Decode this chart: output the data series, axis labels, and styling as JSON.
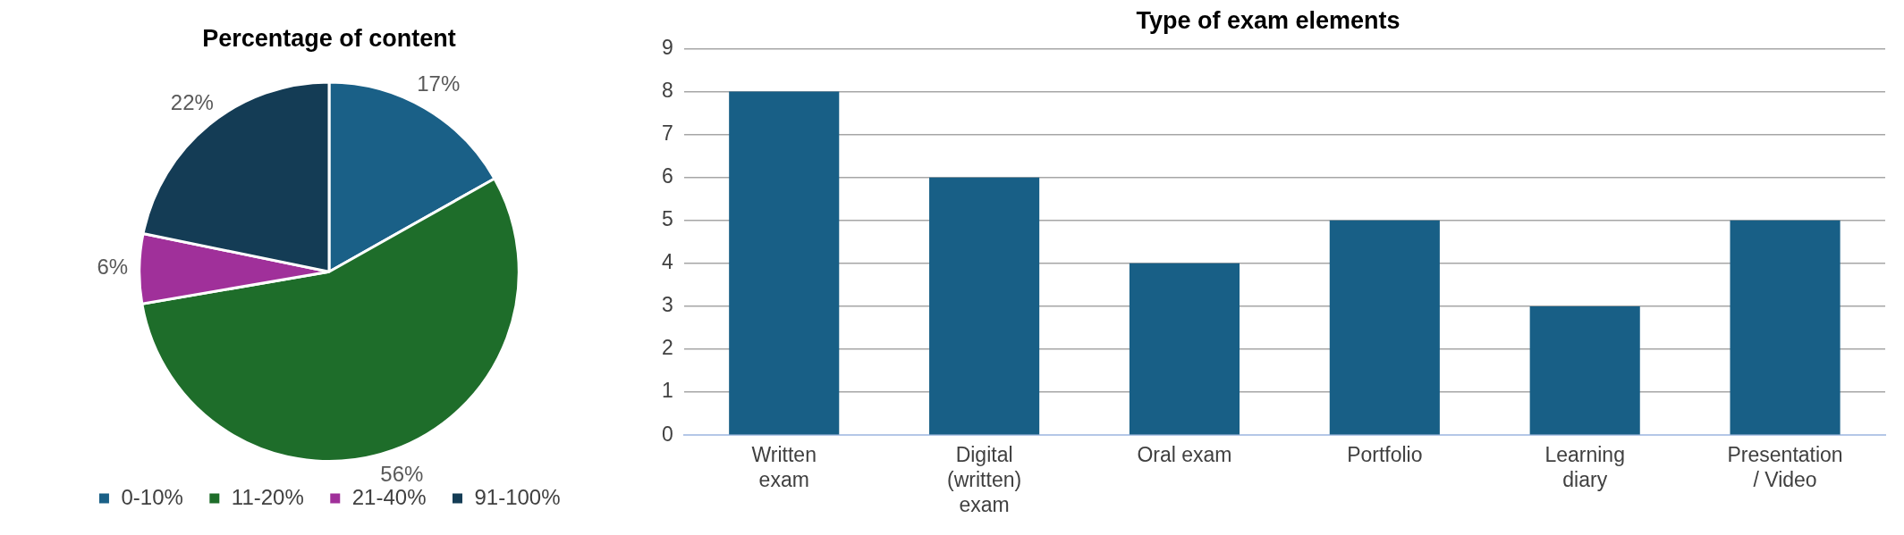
{
  "chart_data": [
    {
      "type": "pie",
      "title": "Percentage of content",
      "categories": [
        "0-10%",
        "11-20%",
        "21-40%",
        "91-100%"
      ],
      "values": [
        17,
        56,
        6,
        22
      ],
      "colors": [
        "#1a6087",
        "#1e6d2a",
        "#a0309a",
        "#143c55"
      ],
      "value_labels": [
        "17%",
        "56%",
        "6%",
        "22%"
      ],
      "legend": "bottom"
    },
    {
      "type": "bar",
      "title": "Type of exam elements",
      "categories": [
        "Written exam",
        "Digital (written) exam",
        "Oral exam",
        "Portfolio",
        "Learning diary",
        "Presentation / Video"
      ],
      "values": [
        8,
        6,
        4,
        5,
        3,
        5
      ],
      "color": "#185f86",
      "ylim": [
        0,
        9
      ],
      "yticks": [
        0,
        1,
        2,
        3,
        4,
        5,
        6,
        7,
        8,
        9
      ],
      "grid": "y",
      "legend": false
    }
  ]
}
